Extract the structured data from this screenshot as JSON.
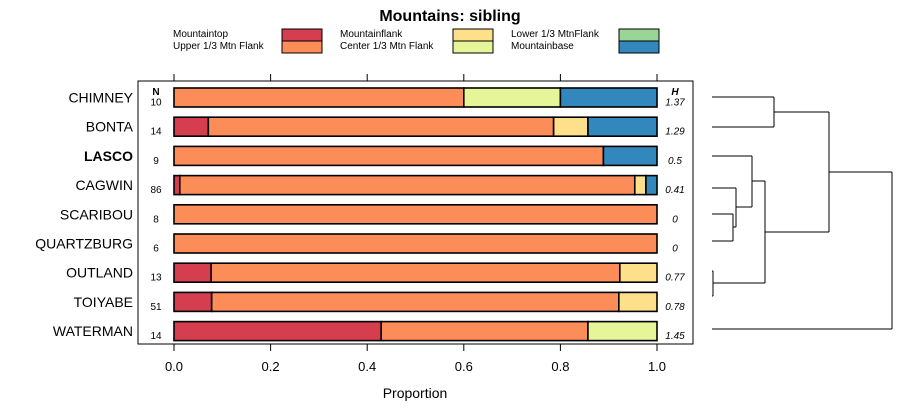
{
  "chart_data": {
    "type": "bar",
    "stacked": true,
    "orientation": "horizontal",
    "title": "Mountains: sibling",
    "xlabel": "Proportion",
    "xlim": [
      0,
      1
    ],
    "x_ticks": [
      "0.0",
      "0.2",
      "0.4",
      "0.6",
      "0.8",
      "1.0"
    ],
    "n_header": "N",
    "h_header": "H",
    "legend": [
      {
        "name": "Mountaintop",
        "color": "#d53e4f"
      },
      {
        "name": "Upper 1/3 Mtn Flank",
        "color": "#fc8d59"
      },
      {
        "name": "Mountainflank",
        "color": "#fee08b"
      },
      {
        "name": "Center 1/3 Mtn Flank",
        "color": "#e6f598"
      },
      {
        "name": "Lower 1/3 MtnFlank",
        "color": "#99d594"
      },
      {
        "name": "Mountainbase",
        "color": "#3288bd"
      }
    ],
    "categories": [
      "CHIMNEY",
      "BONTA",
      "LASCO",
      "CAGWIN",
      "SCARIBOU",
      "QUARTZBURG",
      "OUTLAND",
      "TOIYABE",
      "WATERMAN"
    ],
    "bold_category": "LASCO",
    "n": [
      "10",
      "14",
      "9",
      "86",
      "8",
      "6",
      "13",
      "51",
      "14"
    ],
    "h": [
      "1.37",
      "1.29",
      "0.5",
      "0.41",
      "0",
      "0",
      "0.77",
      "0.78",
      "1.45"
    ],
    "series": [
      {
        "name": "Mountaintop",
        "values": [
          0,
          0.071,
          0,
          0.012,
          0,
          0,
          0.077,
          0.078,
          0.429
        ]
      },
      {
        "name": "Upper 1/3 Mtn Flank",
        "values": [
          0.6,
          0.715,
          0.889,
          0.942,
          1,
          1,
          0.846,
          0.843,
          0.428
        ]
      },
      {
        "name": "Mountainflank",
        "values": [
          0,
          0.071,
          0,
          0.023,
          0,
          0,
          0.077,
          0.079,
          0
        ]
      },
      {
        "name": "Center 1/3 Mtn Flank",
        "values": [
          0.2,
          0,
          0,
          0,
          0,
          0,
          0,
          0,
          0.143
        ]
      },
      {
        "name": "Lower 1/3 MtnFlank",
        "values": [
          0,
          0,
          0,
          0,
          0,
          0,
          0,
          0,
          0
        ]
      },
      {
        "name": "Mountainbase",
        "values": [
          0.2,
          0.143,
          0.111,
          0.023,
          0,
          0,
          0,
          0,
          0
        ]
      }
    ]
  }
}
